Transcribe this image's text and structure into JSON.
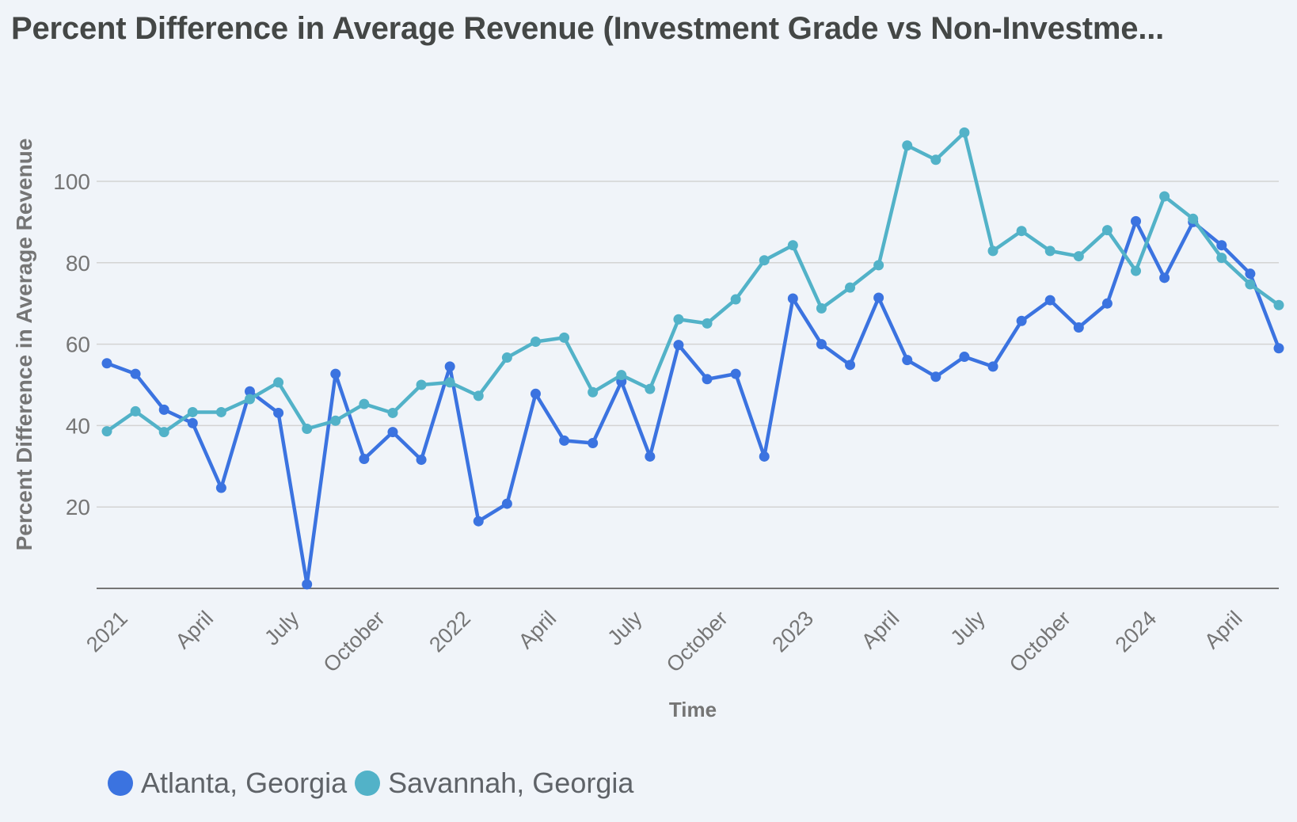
{
  "chart_data": {
    "type": "line",
    "title": "Percent Difference in Average Revenue (Investment Grade vs Non-Investme...",
    "xlabel": "Time",
    "ylabel": "Percent Difference in Average Revenue",
    "ylim": [
      0,
      100
    ],
    "yticks": [
      20,
      40,
      60,
      80,
      100
    ],
    "grid": true,
    "legend_position": "bottom-left",
    "x": [
      "2021-01",
      "2021-02",
      "2021-03",
      "2021-04",
      "2021-05",
      "2021-06",
      "2021-07",
      "2021-08",
      "2021-09",
      "2021-10",
      "2021-11",
      "2021-12",
      "2022-01",
      "2022-02",
      "2022-03",
      "2022-04",
      "2022-05",
      "2022-06",
      "2022-07",
      "2022-08",
      "2022-09",
      "2022-10",
      "2022-11",
      "2022-12",
      "2023-01",
      "2023-02",
      "2023-03",
      "2023-04",
      "2023-05",
      "2023-06",
      "2023-07",
      "2023-08",
      "2023-09",
      "2023-10",
      "2023-11",
      "2023-12",
      "2024-01",
      "2024-02",
      "2024-03",
      "2024-04",
      "2024-05",
      "2024-06"
    ],
    "xtick_labels": [
      {
        "label": "2021",
        "index": 0
      },
      {
        "label": "April",
        "index": 3
      },
      {
        "label": "July",
        "index": 6
      },
      {
        "label": "October",
        "index": 9
      },
      {
        "label": "2022",
        "index": 12
      },
      {
        "label": "April",
        "index": 15
      },
      {
        "label": "July",
        "index": 18
      },
      {
        "label": "October",
        "index": 21
      },
      {
        "label": "2023",
        "index": 24
      },
      {
        "label": "April",
        "index": 27
      },
      {
        "label": "July",
        "index": 30
      },
      {
        "label": "October",
        "index": 33
      },
      {
        "label": "2024",
        "index": 36
      },
      {
        "label": "April",
        "index": 39
      }
    ],
    "series": [
      {
        "name": "Atlanta, Georgia",
        "color": "#3b73e0",
        "values": [
          55.3,
          52.7,
          43.9,
          40.6,
          24.7,
          48.4,
          43.1,
          1.0,
          52.7,
          31.8,
          38.4,
          31.6,
          54.5,
          16.5,
          20.8,
          47.8,
          36.3,
          35.7,
          50.8,
          32.4,
          59.8,
          51.4,
          52.7,
          32.4,
          71.2,
          60.0,
          54.9,
          71.4,
          56.1,
          52.0,
          56.9,
          54.5,
          65.7,
          70.8,
          64.1,
          70.0,
          90.2,
          76.3,
          90.0,
          84.3,
          77.3,
          59.0
        ]
      },
      {
        "name": "Savannah, Georgia",
        "color": "#52b2c8",
        "values": [
          38.6,
          43.5,
          38.4,
          43.3,
          43.3,
          46.5,
          50.6,
          39.2,
          41.2,
          45.3,
          43.1,
          50.0,
          50.6,
          47.3,
          56.7,
          60.6,
          61.6,
          48.2,
          52.4,
          49.0,
          66.1,
          65.1,
          71.0,
          80.6,
          84.3,
          68.8,
          73.9,
          79.4,
          108.8,
          105.3,
          112.0,
          82.9,
          87.8,
          82.9,
          81.6,
          88.0,
          78.0,
          96.3,
          90.8,
          81.2,
          74.7,
          69.6
        ]
      }
    ]
  }
}
